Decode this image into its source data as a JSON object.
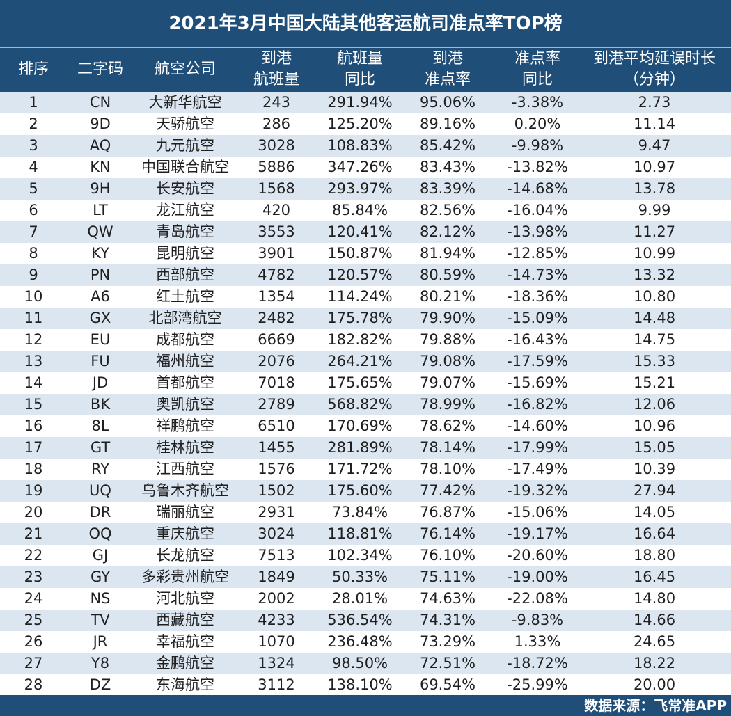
{
  "title": "2021年3月中国大陆其他客运航司准点率TOP榜",
  "headers": [
    "排序",
    "二字码",
    "航空公司",
    "到港\n航班量",
    "航班量\n同比",
    "到港\n准点率",
    "准点率\n同比",
    "到港平均延误时长\n（分钟）"
  ],
  "footer": "数据来源：飞常准APP",
  "colors": {
    "header_bg": "#1f4e79",
    "alt_row": "#dce6f1"
  },
  "chart_data": {
    "type": "table",
    "title": "2021年3月中国大陆其他客运航司准点率TOP榜",
    "rows": [
      [
        "1",
        "CN",
        "大新华航空",
        "243",
        "291.94%",
        "95.06%",
        "-3.38%",
        "2.73"
      ],
      [
        "2",
        "9D",
        "天骄航空",
        "286",
        "125.20%",
        "89.16%",
        "0.20%",
        "11.14"
      ],
      [
        "3",
        "AQ",
        "九元航空",
        "3028",
        "108.83%",
        "85.42%",
        "-9.98%",
        "9.47"
      ],
      [
        "4",
        "KN",
        "中国联合航空",
        "5886",
        "347.26%",
        "83.43%",
        "-13.82%",
        "10.97"
      ],
      [
        "5",
        "9H",
        "长安航空",
        "1568",
        "293.97%",
        "83.39%",
        "-14.68%",
        "13.78"
      ],
      [
        "6",
        "LT",
        "龙江航空",
        "420",
        "85.84%",
        "82.56%",
        "-16.04%",
        "9.99"
      ],
      [
        "7",
        "QW",
        "青岛航空",
        "3553",
        "120.41%",
        "82.12%",
        "-13.98%",
        "11.27"
      ],
      [
        "8",
        "KY",
        "昆明航空",
        "3901",
        "150.87%",
        "81.94%",
        "-12.85%",
        "10.99"
      ],
      [
        "9",
        "PN",
        "西部航空",
        "4782",
        "120.57%",
        "80.59%",
        "-14.73%",
        "13.32"
      ],
      [
        "10",
        "A6",
        "红土航空",
        "1354",
        "114.24%",
        "80.21%",
        "-18.36%",
        "10.80"
      ],
      [
        "11",
        "GX",
        "北部湾航空",
        "2482",
        "175.78%",
        "79.90%",
        "-15.09%",
        "14.48"
      ],
      [
        "12",
        "EU",
        "成都航空",
        "6669",
        "182.82%",
        "79.88%",
        "-16.43%",
        "14.75"
      ],
      [
        "13",
        "FU",
        "福州航空",
        "2076",
        "264.21%",
        "79.08%",
        "-17.59%",
        "15.33"
      ],
      [
        "14",
        "JD",
        "首都航空",
        "7018",
        "175.65%",
        "79.07%",
        "-15.69%",
        "15.21"
      ],
      [
        "15",
        "BK",
        "奥凯航空",
        "2789",
        "568.82%",
        "78.99%",
        "-16.82%",
        "12.06"
      ],
      [
        "16",
        "8L",
        "祥鹏航空",
        "6510",
        "170.69%",
        "78.62%",
        "-14.60%",
        "10.96"
      ],
      [
        "17",
        "GT",
        "桂林航空",
        "1455",
        "281.89%",
        "78.14%",
        "-17.99%",
        "15.05"
      ],
      [
        "18",
        "RY",
        "江西航空",
        "1576",
        "171.72%",
        "78.10%",
        "-17.49%",
        "10.39"
      ],
      [
        "19",
        "UQ",
        "乌鲁木齐航空",
        "1502",
        "175.60%",
        "77.42%",
        "-19.32%",
        "27.94"
      ],
      [
        "20",
        "DR",
        "瑞丽航空",
        "2931",
        "73.84%",
        "76.87%",
        "-15.06%",
        "14.05"
      ],
      [
        "21",
        "OQ",
        "重庆航空",
        "3024",
        "118.81%",
        "76.14%",
        "-19.17%",
        "16.64"
      ],
      [
        "22",
        "GJ",
        "长龙航空",
        "7513",
        "102.34%",
        "76.10%",
        "-20.60%",
        "18.80"
      ],
      [
        "23",
        "GY",
        "多彩贵州航空",
        "1849",
        "50.33%",
        "75.11%",
        "-19.00%",
        "16.45"
      ],
      [
        "24",
        "NS",
        "河北航空",
        "2002",
        "28.01%",
        "74.63%",
        "-22.08%",
        "14.80"
      ],
      [
        "25",
        "TV",
        "西藏航空",
        "4233",
        "536.54%",
        "74.31%",
        "-9.83%",
        "14.66"
      ],
      [
        "26",
        "JR",
        "幸福航空",
        "1070",
        "236.48%",
        "73.29%",
        "1.33%",
        "24.65"
      ],
      [
        "27",
        "Y8",
        "金鹏航空",
        "1324",
        "98.50%",
        "72.51%",
        "-18.72%",
        "18.22"
      ],
      [
        "28",
        "DZ",
        "东海航空",
        "3112",
        "138.10%",
        "69.54%",
        "-25.99%",
        "20.00"
      ]
    ]
  }
}
